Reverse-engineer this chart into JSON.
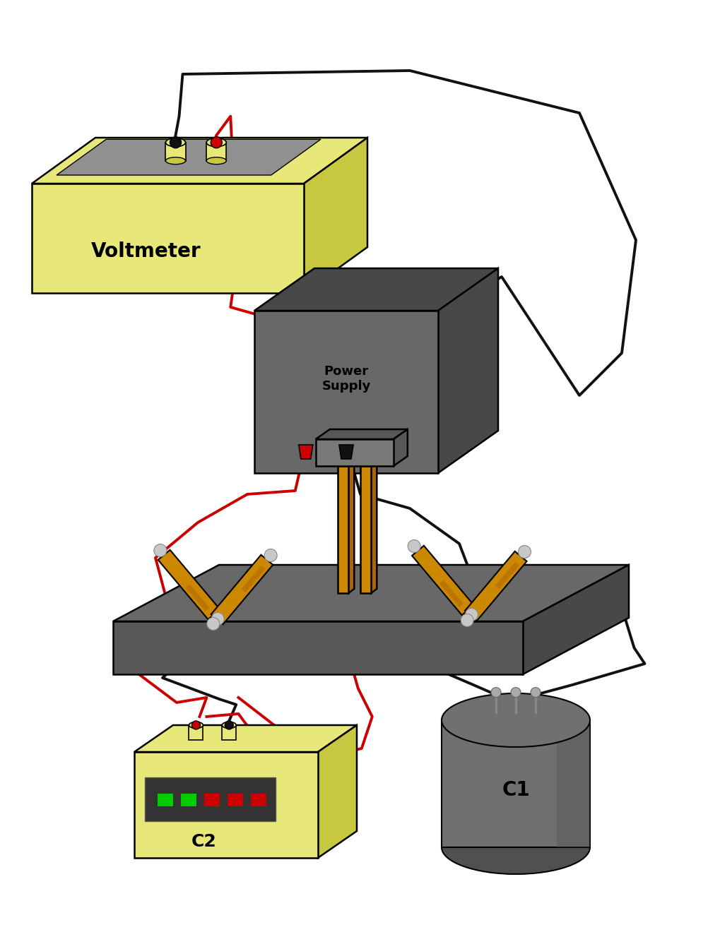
{
  "bg_color": "#ffffff",
  "voltmeter": {
    "body_color": "#e8e87a",
    "body_shadow": "#c8c840",
    "screen_color": "#909090",
    "label": "Voltmeter",
    "terminal_black": "#111111",
    "terminal_red": "#cc0000"
  },
  "power_supply": {
    "body_color": "#686868",
    "body_shadow": "#484848",
    "label": "Power\nSupply",
    "terminal_red": "#cc0000",
    "terminal_black": "#111111"
  },
  "breadboard": {
    "base_color": "#585858",
    "top_color": "#686868",
    "side_color": "#484848",
    "clamp_color": "#787878",
    "clamp_dark": "#585858",
    "resistor_color": "#cc8800",
    "resistor_dark": "#aa6600"
  },
  "c2": {
    "body_color": "#e8e87a",
    "body_shadow": "#c8c840",
    "screen_color": "#333333",
    "led_green": "#00cc00",
    "led_red": "#cc0000",
    "label": "C2",
    "terminal_red": "#cc0000",
    "terminal_black": "#111111"
  },
  "c1": {
    "body_color": "#707070",
    "body_shadow": "#505050",
    "label": "C1"
  },
  "wire_black": "#111111",
  "wire_red": "#cc0000"
}
